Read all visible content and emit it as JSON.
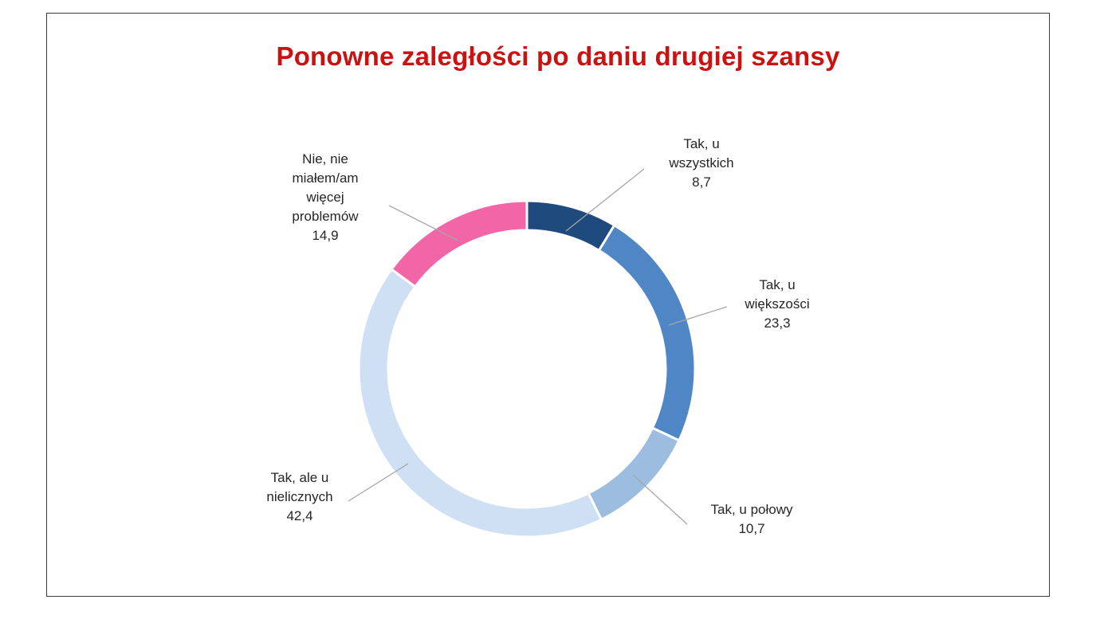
{
  "chart_data": {
    "type": "donut",
    "title": "Ponowne zaległości po daniu drugiej szansy",
    "decimal_separator": ",",
    "slices": [
      {
        "label_lines": [
          "Tak, u",
          "wszystkich"
        ],
        "value": 8.7,
        "color": "#1f4a7e"
      },
      {
        "label_lines": [
          "Tak, u",
          "większości"
        ],
        "value": 23.3,
        "color": "#4f87c6"
      },
      {
        "label_lines": [
          "Tak, u połowy"
        ],
        "value": 10.7,
        "color": "#9dbde0"
      },
      {
        "label_lines": [
          "Tak, ale u",
          "nielicznych"
        ],
        "value": 42.4,
        "color": "#cfe0f5"
      },
      {
        "label_lines": [
          "Nie, nie",
          "miałem/am",
          "więcej",
          "problemów"
        ],
        "value": 14.9,
        "color": "#f266a7"
      }
    ],
    "legend": "none",
    "data_labels": "outside with leader lines"
  }
}
